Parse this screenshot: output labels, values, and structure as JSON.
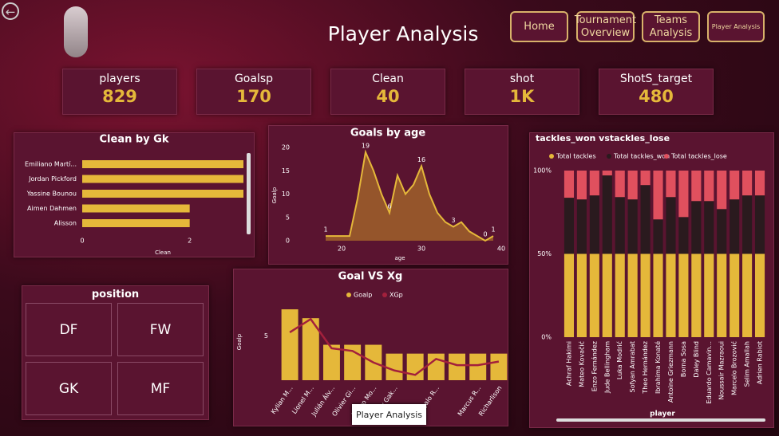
{
  "title": "Player Analysis",
  "nav": [
    "Home",
    "Tournament Overview",
    "Teams Analysis",
    "Player Analysis"
  ],
  "kpis": [
    {
      "label": "players",
      "value": "829"
    },
    {
      "label": "Goalsp",
      "value": "170"
    },
    {
      "label": "Clean",
      "value": "40"
    },
    {
      "label": "shot",
      "value": "1K"
    },
    {
      "label": "ShotS_target",
      "value": "480"
    }
  ],
  "slicer": {
    "title": "position",
    "options": [
      "DF",
      "FW",
      "GK",
      "MF"
    ]
  },
  "tooltip": "Player Analysis",
  "chart_data": [
    {
      "type": "bar",
      "orientation": "horizontal",
      "title": "Clean by Gk",
      "xlabel": "Clean",
      "categories": [
        "Emiliano Martí...",
        "Jordan Pickford",
        "Yassine Bounou",
        "Aimen Dahmen",
        "Alisson"
      ],
      "values": [
        3,
        3,
        3,
        2,
        2
      ],
      "color": "#e5b83a",
      "xlim": [
        0,
        3
      ],
      "xticks": [
        0,
        2
      ]
    },
    {
      "type": "area",
      "title": "Goals by age",
      "xlabel": "age",
      "ylabel": "Goalp",
      "x": [
        18,
        19,
        20,
        21,
        22,
        23,
        24,
        25,
        26,
        27,
        28,
        29,
        30,
        31,
        32,
        33,
        34,
        35,
        36,
        37,
        38,
        39
      ],
      "values": [
        1,
        1,
        1,
        1,
        9,
        19,
        15,
        10,
        6,
        14,
        10,
        12,
        16,
        10,
        6,
        4,
        3,
        4,
        2,
        1,
        0,
        1
      ],
      "value_labels": [
        "1",
        null,
        null,
        null,
        null,
        "19",
        null,
        null,
        "6",
        null,
        null,
        null,
        "16",
        null,
        null,
        null,
        "3",
        null,
        null,
        null,
        "0",
        "1"
      ],
      "color": "#e5b83a",
      "xlim": [
        17.5,
        39
      ],
      "xticks": [
        20,
        30,
        40
      ],
      "ylim": [
        0,
        20
      ],
      "yticks": [
        0,
        5,
        10,
        15,
        20
      ]
    },
    {
      "type": "combo",
      "title": "Goal VS Xg",
      "ylabel": "Goalp",
      "categories": [
        "Kylian M...",
        "Lionel M...",
        "Julián Álv...",
        "Olivier Gi...",
        "Álvaro Mo...",
        "Cody Gak...",
        null,
        "Gonçalo R...",
        null,
        "Marcus R...",
        "Richarlison"
      ],
      "series": [
        {
          "name": "Goalp",
          "color": "#e5b83a",
          "values": [
            8,
            7,
            4,
            4,
            4,
            3,
            3,
            3,
            3,
            3,
            3
          ]
        },
        {
          "name": "XGp",
          "color": "#a3203c",
          "values": [
            5.4,
            6.9,
            3.6,
            3.3,
            2.0,
            1.1,
            0.6,
            2.4,
            1.7,
            1.7,
            2.1
          ]
        }
      ],
      "ylim": [
        0,
        8.5
      ],
      "yticks": [
        5
      ]
    },
    {
      "type": "stacked_bar",
      "title": "tackles_won vstackles_lose",
      "xlabel": "player",
      "categories": [
        "Achraf Hakimi",
        "Mateo Kovačić",
        "Enzo Fernández",
        "Jude Bellingham",
        "Luka Modrić",
        "Sofyan Amrabat",
        "Theo Hernández",
        "Ibrahima Konaté",
        "Antoine Griezmann",
        "Borna Sosa",
        "Daley Blind",
        "Eduardo Camavin...",
        "Noussair Mazraoui",
        "Marcelo Brozović",
        "Selim Amallah",
        "Adrien Rabiot"
      ],
      "series": [
        {
          "name": "Total tackles",
          "color": "#e5b83a",
          "values": [
            50,
            50,
            50,
            50,
            50,
            50,
            50,
            50,
            50,
            50,
            50,
            50,
            50,
            50,
            50,
            50
          ]
        },
        {
          "name": "Total tackles_won",
          "color": "#2a1a1e",
          "values": [
            33.7,
            32.7,
            35.1,
            47.1,
            34.1,
            32.7,
            41.3,
            20.7,
            34.1,
            22.1,
            31.7,
            31.7,
            26.9,
            32.7,
            35.1,
            35.1
          ]
        },
        {
          "name": "Total tackles_lose",
          "color": "#e0505e",
          "values": [
            16.3,
            17.3,
            14.9,
            2.9,
            15.9,
            17.3,
            8.7,
            29.3,
            15.9,
            27.9,
            18.3,
            18.3,
            23.1,
            17.3,
            14.9,
            14.9
          ]
        }
      ],
      "ylim": [
        0,
        100
      ],
      "yticks": [
        {
          "value": 0,
          "label": "0%"
        },
        {
          "value": 50,
          "label": "50%"
        },
        {
          "value": 100,
          "label": "100%"
        }
      ]
    }
  ]
}
